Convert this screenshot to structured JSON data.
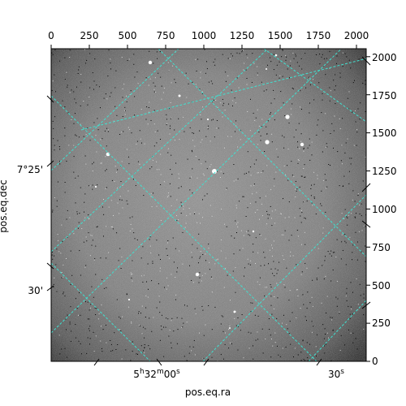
{
  "figure": {
    "xlabel": "pos.eq.ra",
    "ylabel": "pos.eq.dec",
    "top_ticks": [
      "0",
      "250",
      "500",
      "750",
      "1000",
      "1250",
      "1500",
      "1750",
      "2000"
    ],
    "right_ticks": [
      "0",
      "250",
      "500",
      "750",
      "1000",
      "1250",
      "1500",
      "1750",
      "2000"
    ],
    "left_ticks": [
      "7°25'",
      "30'"
    ],
    "bottom_ticks": [
      "5h32m00s",
      "30s"
    ],
    "grid_color": "#40e0d0",
    "image_style": "grayscale noisy astronomical frame with sparse bright stars"
  }
}
